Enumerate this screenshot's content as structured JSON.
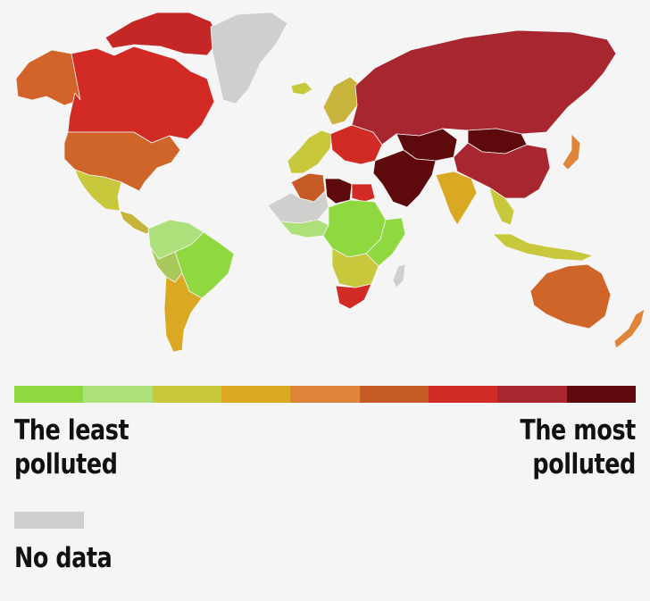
{
  "legend": {
    "least_label": "The least\npolluted",
    "most_label": "The most\npolluted",
    "scale_colors": [
      "#8fd83f",
      "#ade07b",
      "#c8c83c",
      "#dba823",
      "#de853a",
      "#c65a26",
      "#d22a24",
      "#a82630",
      "#5e0a0c"
    ],
    "no_data_label": "No data",
    "no_data_color": "#cfd0ce"
  },
  "map": {
    "regions": [
      {
        "name": "alaska",
        "color": "#d2642a"
      },
      {
        "name": "canada",
        "color": "#d22a24"
      },
      {
        "name": "arctic-islands",
        "color": "#c52626"
      },
      {
        "name": "greenland",
        "color": "#cfd0ce"
      },
      {
        "name": "usa",
        "color": "#d0652a"
      },
      {
        "name": "mexico",
        "color": "#c8c83c"
      },
      {
        "name": "central-america",
        "color": "#c6b33a"
      },
      {
        "name": "south-america-north",
        "color": "#ade07b"
      },
      {
        "name": "brazil",
        "color": "#8fd83f"
      },
      {
        "name": "peru-bolivia",
        "color": "#a8c85a"
      },
      {
        "name": "argentina-chile",
        "color": "#dba823"
      },
      {
        "name": "iceland",
        "color": "#c8c83c"
      },
      {
        "name": "scandinavia",
        "color": "#c8b43c"
      },
      {
        "name": "western-europe",
        "color": "#c8c83c"
      },
      {
        "name": "central-europe",
        "color": "#d22a24"
      },
      {
        "name": "russia",
        "color": "#a82630"
      },
      {
        "name": "central-asia",
        "color": "#5e0a0c"
      },
      {
        "name": "mongolia",
        "color": "#5e0a0c"
      },
      {
        "name": "china",
        "color": "#a82630"
      },
      {
        "name": "middle-east",
        "color": "#5e0a0c"
      },
      {
        "name": "india",
        "color": "#dba823"
      },
      {
        "name": "southeast-asia",
        "color": "#c8c83c"
      },
      {
        "name": "indonesia",
        "color": "#c8c83c"
      },
      {
        "name": "japan",
        "color": "#de853a"
      },
      {
        "name": "north-africa-west",
        "color": "#c65a26"
      },
      {
        "name": "sahara",
        "color": "#cfd0ce"
      },
      {
        "name": "libya",
        "color": "#5e0a0c"
      },
      {
        "name": "egypt",
        "color": "#d22a24"
      },
      {
        "name": "west-africa",
        "color": "#ade07b"
      },
      {
        "name": "central-africa",
        "color": "#8fd83f"
      },
      {
        "name": "east-africa",
        "color": "#8fd83f"
      },
      {
        "name": "southern-africa",
        "color": "#c8c83c"
      },
      {
        "name": "south-africa",
        "color": "#d22a24"
      },
      {
        "name": "madagascar",
        "color": "#cfd0ce"
      },
      {
        "name": "australia",
        "color": "#d0652a"
      },
      {
        "name": "new-zealand",
        "color": "#de853a"
      }
    ]
  }
}
